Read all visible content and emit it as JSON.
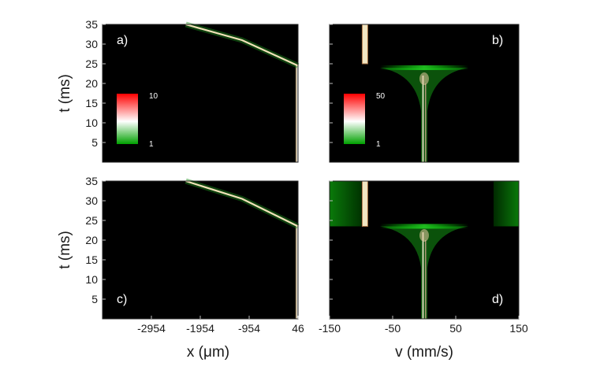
{
  "chart_data": [
    {
      "type": "heatmap",
      "panel_label": "a)",
      "x_axis": "position",
      "xlim": [
        -3954,
        46
      ],
      "ylim": [
        0,
        35
      ],
      "yticks": [
        5,
        10,
        15,
        20,
        25,
        30,
        35
      ],
      "ylabel": "t (ms)",
      "colorbar": {
        "min_label": "1",
        "max_label": "10",
        "colors": [
          "#00a000",
          "#ffffff",
          "#ff0000"
        ]
      },
      "features": [
        {
          "name": "static-line",
          "points": [
            [
              40,
              0
            ],
            [
              40,
              24.5
            ]
          ]
        },
        {
          "name": "moving-front",
          "points": [
            [
              -2250,
              35
            ],
            [
              -1100,
              31
            ],
            [
              46,
              24.5
            ]
          ]
        }
      ]
    },
    {
      "type": "heatmap",
      "panel_label": "b)",
      "x_axis": "velocity",
      "xlim": [
        -150,
        150
      ],
      "ylim": [
        0,
        35
      ],
      "yticks": [
        5,
        10,
        15,
        20,
        25,
        30,
        35
      ],
      "colorbar": {
        "min_label": "1",
        "max_label": "50",
        "colors": [
          "#00a000",
          "#ffffff",
          "#ff0000"
        ]
      },
      "features": [
        {
          "name": "velocity-spread",
          "points": [
            [
              0,
              0
            ],
            [
              0,
              22
            ],
            [
              -70,
              24
            ],
            [
              70,
              24
            ]
          ]
        },
        {
          "name": "moving-velocity",
          "points": [
            [
              -92,
              25
            ],
            [
              -92,
              35
            ]
          ]
        }
      ]
    },
    {
      "type": "heatmap",
      "panel_label": "c)",
      "x_axis": "position",
      "xlim": [
        -3954,
        46
      ],
      "ylim": [
        0,
        35
      ],
      "xticks": [
        -2954,
        -1954,
        -954,
        46
      ],
      "yticks": [
        5,
        10,
        15,
        20,
        25,
        30,
        35
      ],
      "xlabel": "x (μm)",
      "ylabel": "t (ms)",
      "features": [
        {
          "name": "static-line",
          "points": [
            [
              40,
              0
            ],
            [
              40,
              23.5
            ]
          ]
        },
        {
          "name": "moving-front",
          "points": [
            [
              -2250,
              35
            ],
            [
              -1100,
              30.5
            ],
            [
              46,
              23.5
            ]
          ]
        }
      ]
    },
    {
      "type": "heatmap",
      "panel_label": "d)",
      "x_axis": "velocity",
      "xlim": [
        -150,
        150
      ],
      "ylim": [
        0,
        35
      ],
      "xticks": [
        -150,
        -50,
        50,
        150
      ],
      "yticks": [
        5,
        10,
        15,
        20,
        25,
        30,
        35
      ],
      "xlabel": "v (mm/s)",
      "features": [
        {
          "name": "velocity-spread",
          "points": [
            [
              0,
              0
            ],
            [
              0,
              22
            ],
            [
              -70,
              23.5
            ],
            [
              70,
              23.5
            ]
          ]
        },
        {
          "name": "moving-velocity",
          "points": [
            [
              -92,
              23.5
            ],
            [
              -92,
              35
            ]
          ]
        },
        {
          "name": "edge-bands",
          "points": [
            [
              -150,
              23.5
            ],
            [
              -92,
              35
            ],
            [
              110,
              23.5
            ],
            [
              150,
              35
            ]
          ]
        }
      ]
    }
  ]
}
